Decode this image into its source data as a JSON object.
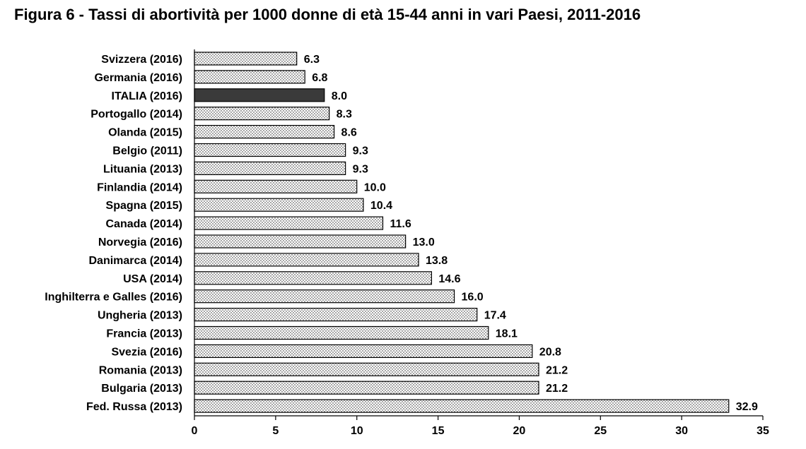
{
  "chart_data": {
    "type": "bar",
    "orientation": "horizontal",
    "title": "Figura 6 - Tassi di abortività per 1000 donne di età 15-44 anni in vari Paesi, 2011-2016",
    "categories": [
      "Svizzera (2016)",
      "Germania (2016)",
      "ITALIA (2016)",
      "Portogallo (2014)",
      "Olanda (2015)",
      "Belgio (2011)",
      "Lituania (2013)",
      "Finlandia (2014)",
      "Spagna (2015)",
      "Canada (2014)",
      "Norvegia (2016)",
      "Danimarca (2014)",
      "USA (2014)",
      "Inghilterra e Galles (2016)",
      "Ungheria (2013)",
      "Francia (2013)",
      "Svezia (2016)",
      "Romania (2013)",
      "Bulgaria (2013)",
      "Fed. Russa (2013)"
    ],
    "values": [
      6.3,
      6.8,
      8.0,
      8.3,
      8.6,
      9.3,
      9.3,
      10.0,
      10.4,
      11.6,
      13.0,
      13.8,
      14.6,
      16.0,
      17.4,
      18.1,
      20.8,
      21.2,
      21.2,
      32.9
    ],
    "value_labels": [
      "6.3",
      "6.8",
      "8.0",
      "8.3",
      "8.6",
      "9.3",
      "9.3",
      "10.0",
      "10.4",
      "11.6",
      "13.0",
      "13.8",
      "14.6",
      "16.0",
      "17.4",
      "18.1",
      "20.8",
      "21.2",
      "21.2",
      "32.9"
    ],
    "highlight_index": 2,
    "xlim": [
      0,
      35
    ],
    "xticks": [
      0,
      5,
      10,
      15,
      20,
      25,
      30,
      35
    ],
    "xlabel": "",
    "ylabel": "",
    "grid": false,
    "legend": "none",
    "colors": {
      "bar_fill": "#ffffff",
      "bar_dots": "#222222",
      "bar_stroke": "#000000",
      "highlight_fill": "#3a3a3a",
      "axis": "#000000"
    }
  }
}
